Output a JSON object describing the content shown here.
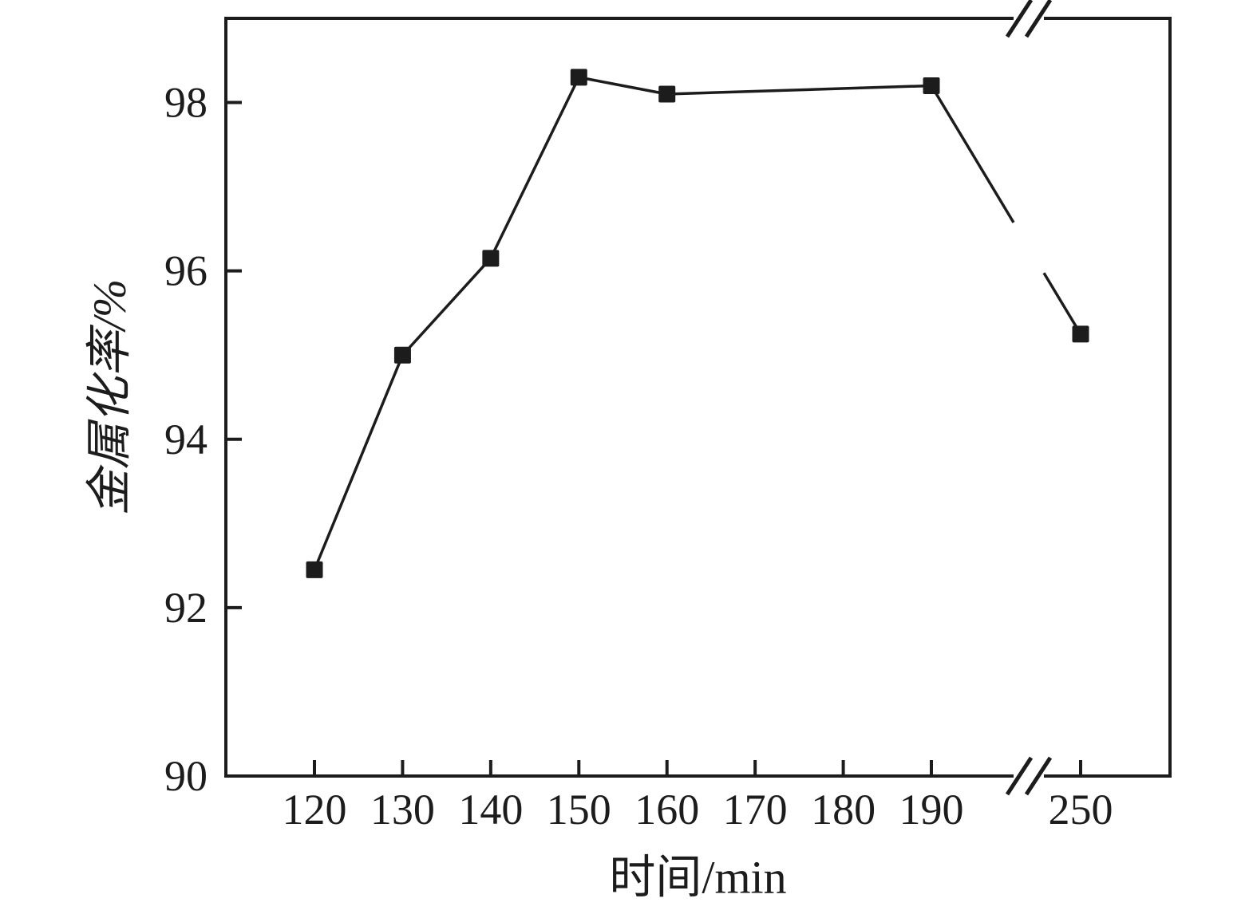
{
  "page": {
    "background": "#ffffff",
    "ink_color": "#1c1c1c"
  },
  "chart_data": {
    "type": "line",
    "title": "",
    "xlabel": "时间/min",
    "ylabel": "金属化率/%",
    "x": [
      120,
      130,
      140,
      150,
      160,
      190,
      250
    ],
    "y": [
      92.45,
      95.0,
      96.15,
      98.3,
      98.1,
      98.2,
      95.25
    ],
    "x_ticks": [
      120,
      130,
      140,
      150,
      160,
      170,
      180,
      190,
      250
    ],
    "y_ticks": [
      90,
      92,
      94,
      96,
      98
    ],
    "ylim": [
      90,
      99
    ],
    "x_axis_break": {
      "between": [
        190,
        250
      ],
      "symbol": "//"
    },
    "marker": "square",
    "line_color": "#1c1c1c",
    "marker_color": "#1c1c1c",
    "grid": false
  }
}
